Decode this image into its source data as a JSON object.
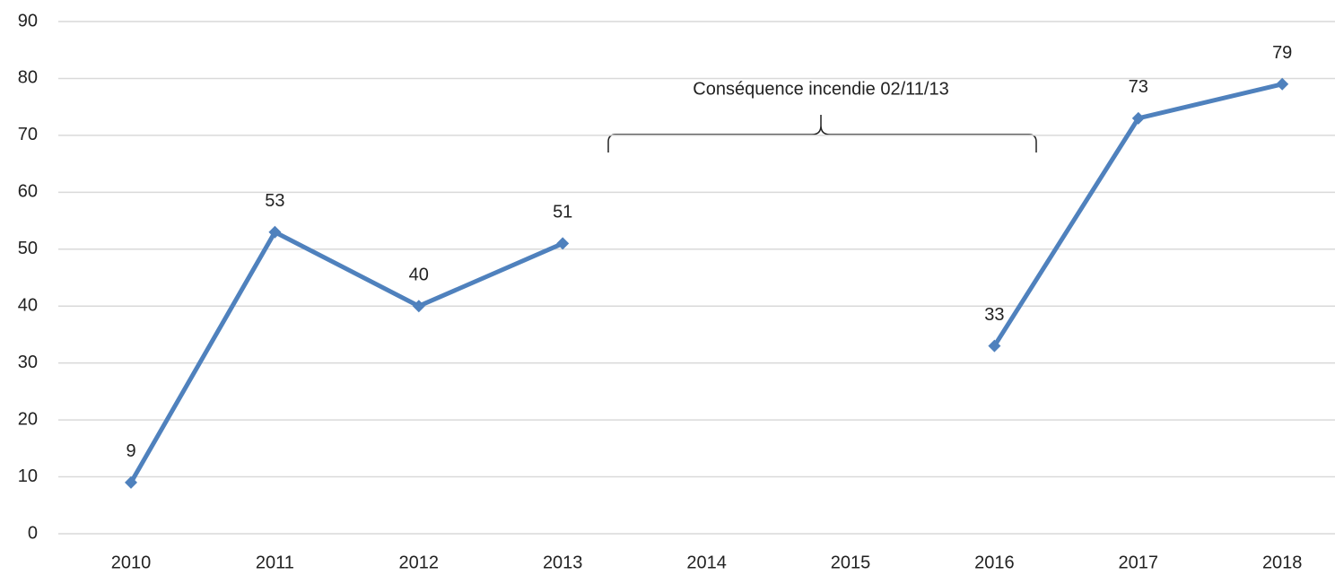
{
  "chart_data": {
    "type": "line",
    "categories": [
      "2010",
      "2011",
      "2012",
      "2013",
      "2014",
      "2015",
      "2016",
      "2017",
      "2018"
    ],
    "series": [
      {
        "color": "#4f81bd",
        "values": [
          9,
          53,
          40,
          51,
          null,
          null,
          33,
          73,
          79
        ]
      }
    ],
    "ylim": [
      0,
      90
    ],
    "yticks": [
      0,
      10,
      20,
      30,
      40,
      50,
      60,
      70,
      80,
      90
    ],
    "grid": true,
    "annotation": "Conséquence incendie 02/11/13"
  }
}
